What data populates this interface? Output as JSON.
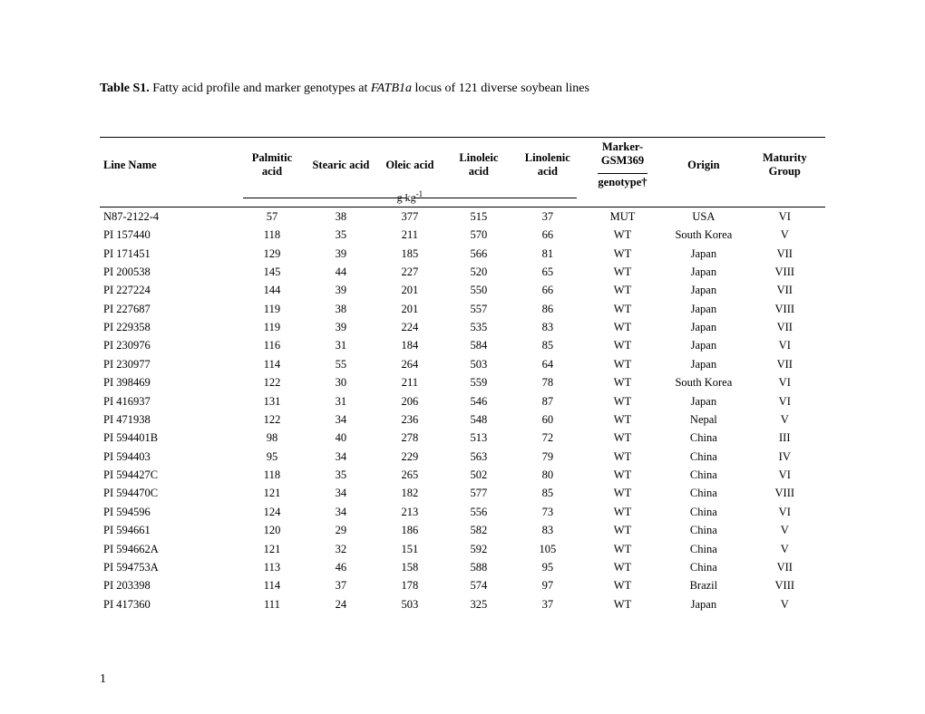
{
  "caption_bold": "Table S1.",
  "caption_rest_1": " Fatty acid profile and marker genotypes at ",
  "caption_italic": "FATB1a",
  "caption_rest_2": " locus of 121 diverse soybean lines",
  "columns": {
    "line_name": "Line Name",
    "palmitic": "Palmitic acid",
    "stearic": "Stearic acid",
    "oleic": "Oleic acid",
    "linoleic": "Linoleic acid",
    "linolenic": "Linolenic acid",
    "marker_top": "Marker-GSM369",
    "marker_bottom": "genotype†",
    "origin": "Origin",
    "maturity": "Maturity Group"
  },
  "unit_label": "g kg",
  "unit_sup": "-1",
  "rows": [
    {
      "line": "N87-2122-4",
      "pal": "57",
      "ste": "38",
      "ole": "377",
      "lin": "515",
      "lnn": "37",
      "mk": "MUT",
      "org": "USA",
      "mat": "VI"
    },
    {
      "line": "PI 157440",
      "pal": "118",
      "ste": "35",
      "ole": "211",
      "lin": "570",
      "lnn": "66",
      "mk": "WT",
      "org": "South Korea",
      "mat": "V"
    },
    {
      "line": "PI 171451",
      "pal": "129",
      "ste": "39",
      "ole": "185",
      "lin": "566",
      "lnn": "81",
      "mk": "WT",
      "org": "Japan",
      "mat": "VII"
    },
    {
      "line": "PI 200538",
      "pal": "145",
      "ste": "44",
      "ole": "227",
      "lin": "520",
      "lnn": "65",
      "mk": "WT",
      "org": "Japan",
      "mat": "VIII"
    },
    {
      "line": "PI 227224",
      "pal": "144",
      "ste": "39",
      "ole": "201",
      "lin": "550",
      "lnn": "66",
      "mk": "WT",
      "org": "Japan",
      "mat": "VII"
    },
    {
      "line": "PI 227687",
      "pal": "119",
      "ste": "38",
      "ole": "201",
      "lin": "557",
      "lnn": "86",
      "mk": "WT",
      "org": "Japan",
      "mat": "VIII"
    },
    {
      "line": "PI 229358",
      "pal": "119",
      "ste": "39",
      "ole": "224",
      "lin": "535",
      "lnn": "83",
      "mk": "WT",
      "org": "Japan",
      "mat": "VII"
    },
    {
      "line": "PI 230976",
      "pal": "116",
      "ste": "31",
      "ole": "184",
      "lin": "584",
      "lnn": "85",
      "mk": "WT",
      "org": "Japan",
      "mat": "VI"
    },
    {
      "line": "PI 230977",
      "pal": "114",
      "ste": "55",
      "ole": "264",
      "lin": "503",
      "lnn": "64",
      "mk": "WT",
      "org": "Japan",
      "mat": "VII"
    },
    {
      "line": "PI 398469",
      "pal": "122",
      "ste": "30",
      "ole": "211",
      "lin": "559",
      "lnn": "78",
      "mk": "WT",
      "org": "South Korea",
      "mat": "VI"
    },
    {
      "line": "PI 416937",
      "pal": "131",
      "ste": "31",
      "ole": "206",
      "lin": "546",
      "lnn": "87",
      "mk": "WT",
      "org": "Japan",
      "mat": "VI"
    },
    {
      "line": "PI 471938",
      "pal": "122",
      "ste": "34",
      "ole": "236",
      "lin": "548",
      "lnn": "60",
      "mk": "WT",
      "org": "Nepal",
      "mat": "V"
    },
    {
      "line": "PI 594401B",
      "pal": "98",
      "ste": "40",
      "ole": "278",
      "lin": "513",
      "lnn": "72",
      "mk": "WT",
      "org": "China",
      "mat": "III"
    },
    {
      "line": "PI 594403",
      "pal": "95",
      "ste": "34",
      "ole": "229",
      "lin": "563",
      "lnn": "79",
      "mk": "WT",
      "org": "China",
      "mat": "IV"
    },
    {
      "line": "PI 594427C",
      "pal": "118",
      "ste": "35",
      "ole": "265",
      "lin": "502",
      "lnn": "80",
      "mk": "WT",
      "org": "China",
      "mat": "VI"
    },
    {
      "line": "PI 594470C",
      "pal": "121",
      "ste": "34",
      "ole": "182",
      "lin": "577",
      "lnn": "85",
      "mk": "WT",
      "org": "China",
      "mat": "VIII"
    },
    {
      "line": "PI 594596",
      "pal": "124",
      "ste": "34",
      "ole": "213",
      "lin": "556",
      "lnn": "73",
      "mk": "WT",
      "org": "China",
      "mat": "VI"
    },
    {
      "line": "PI 594661",
      "pal": "120",
      "ste": "29",
      "ole": "186",
      "lin": "582",
      "lnn": "83",
      "mk": "WT",
      "org": "China",
      "mat": "V"
    },
    {
      "line": "PI 594662A",
      "pal": "121",
      "ste": "32",
      "ole": "151",
      "lin": "592",
      "lnn": "105",
      "mk": "WT",
      "org": "China",
      "mat": "V"
    },
    {
      "line": "PI 594753A",
      "pal": "113",
      "ste": "46",
      "ole": "158",
      "lin": "588",
      "lnn": "95",
      "mk": "WT",
      "org": "China",
      "mat": "VII"
    },
    {
      "line": "PI 203398",
      "pal": "114",
      "ste": "37",
      "ole": "178",
      "lin": "574",
      "lnn": "97",
      "mk": "WT",
      "org": "Brazil",
      "mat": "VIII"
    },
    {
      "line": "PI 417360",
      "pal": "111",
      "ste": "24",
      "ole": "503",
      "lin": "325",
      "lnn": "37",
      "mk": "WT",
      "org": "Japan",
      "mat": "V"
    }
  ],
  "page_number": "1"
}
